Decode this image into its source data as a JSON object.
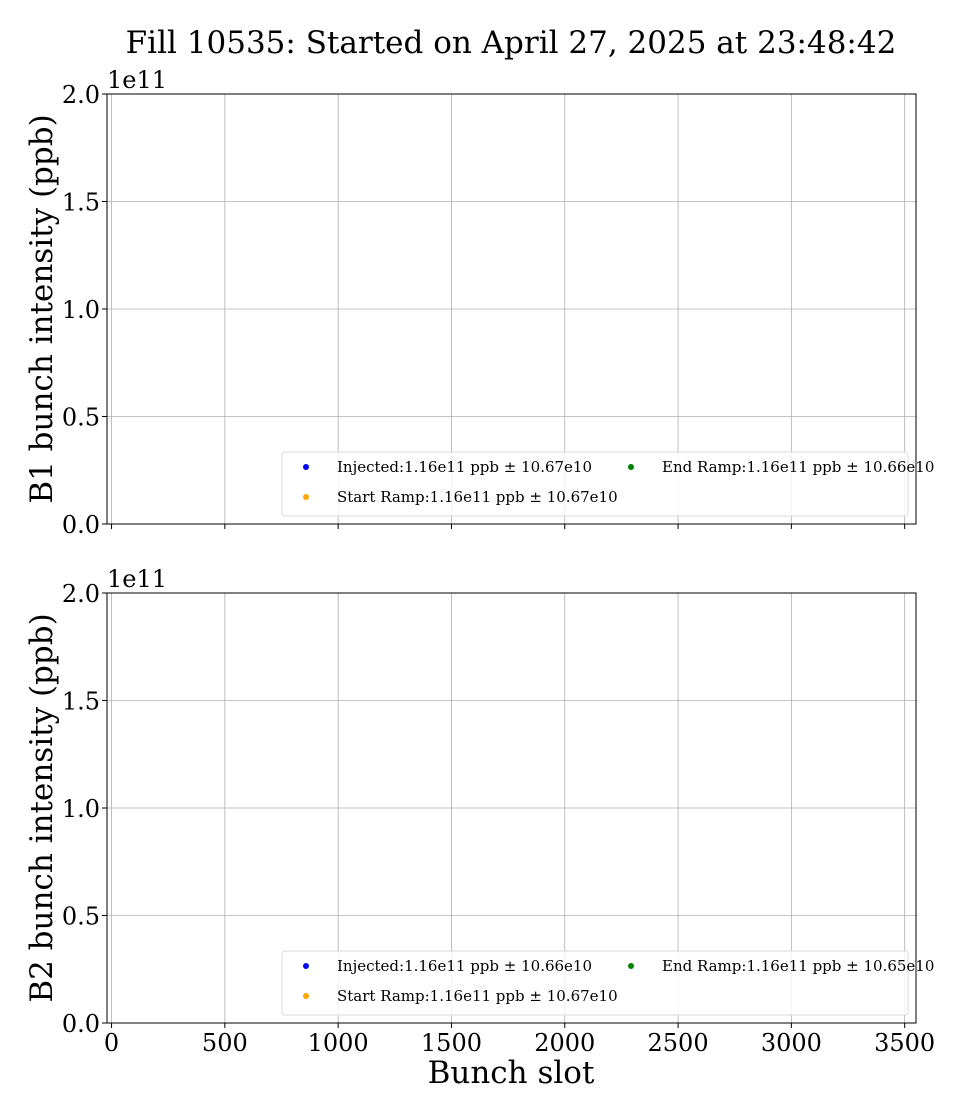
{
  "chart_data": {
    "type": "scatter",
    "title": "Fill 10535: Started on April 27, 2025 at 23:48:42",
    "xlabel": "Bunch slot",
    "xlim": [
      -20,
      3550
    ],
    "x_ticks": [
      0,
      500,
      1000,
      1500,
      2000,
      2500,
      3000,
      3500
    ],
    "x_tick_labels": [
      "0",
      "500",
      "1000",
      "1500",
      "2000",
      "2500",
      "3000",
      "3500"
    ],
    "grid": true,
    "legend_location": "lower-right",
    "legend_columns": 2,
    "panels": [
      {
        "ylabel": "B1 bunch intensity (ppb)",
        "ylim": [
          0,
          200000000000.0
        ],
        "y_ticks": [
          0,
          50000000000.0,
          100000000000.0,
          150000000000.0,
          200000000000.0
        ],
        "y_tick_labels": [
          "0.0",
          "0.5",
          "1.0",
          "1.5",
          "2.0"
        ],
        "y_offset_text": "1e11",
        "show_x_tick_labels": false,
        "series": [
          {
            "name": "Injected:1.16e11 ppb ± 10.67e10",
            "color": "#0000ff",
            "x": [],
            "y": []
          },
          {
            "name": "Start Ramp:1.16e11 ppb ± 10.67e10",
            "color": "#ffa500",
            "x": [],
            "y": []
          },
          {
            "name": "End Ramp:1.16e11 ppb ± 10.66e10",
            "color": "#008000",
            "x": [],
            "y": []
          }
        ]
      },
      {
        "ylabel": "B2 bunch intensity (ppb)",
        "ylim": [
          0,
          200000000000.0
        ],
        "y_ticks": [
          0,
          50000000000.0,
          100000000000.0,
          150000000000.0,
          200000000000.0
        ],
        "y_tick_labels": [
          "0.0",
          "0.5",
          "1.0",
          "1.5",
          "2.0"
        ],
        "y_offset_text": "1e11",
        "show_x_tick_labels": true,
        "series": [
          {
            "name": "Injected:1.16e11 ppb ± 10.66e10",
            "color": "#0000ff",
            "x": [],
            "y": []
          },
          {
            "name": "Start Ramp:1.16e11 ppb ± 10.67e10",
            "color": "#ffa500",
            "x": [],
            "y": []
          },
          {
            "name": "End Ramp:1.16e11 ppb ± 10.65e10",
            "color": "#008000",
            "x": [],
            "y": []
          }
        ]
      }
    ]
  }
}
